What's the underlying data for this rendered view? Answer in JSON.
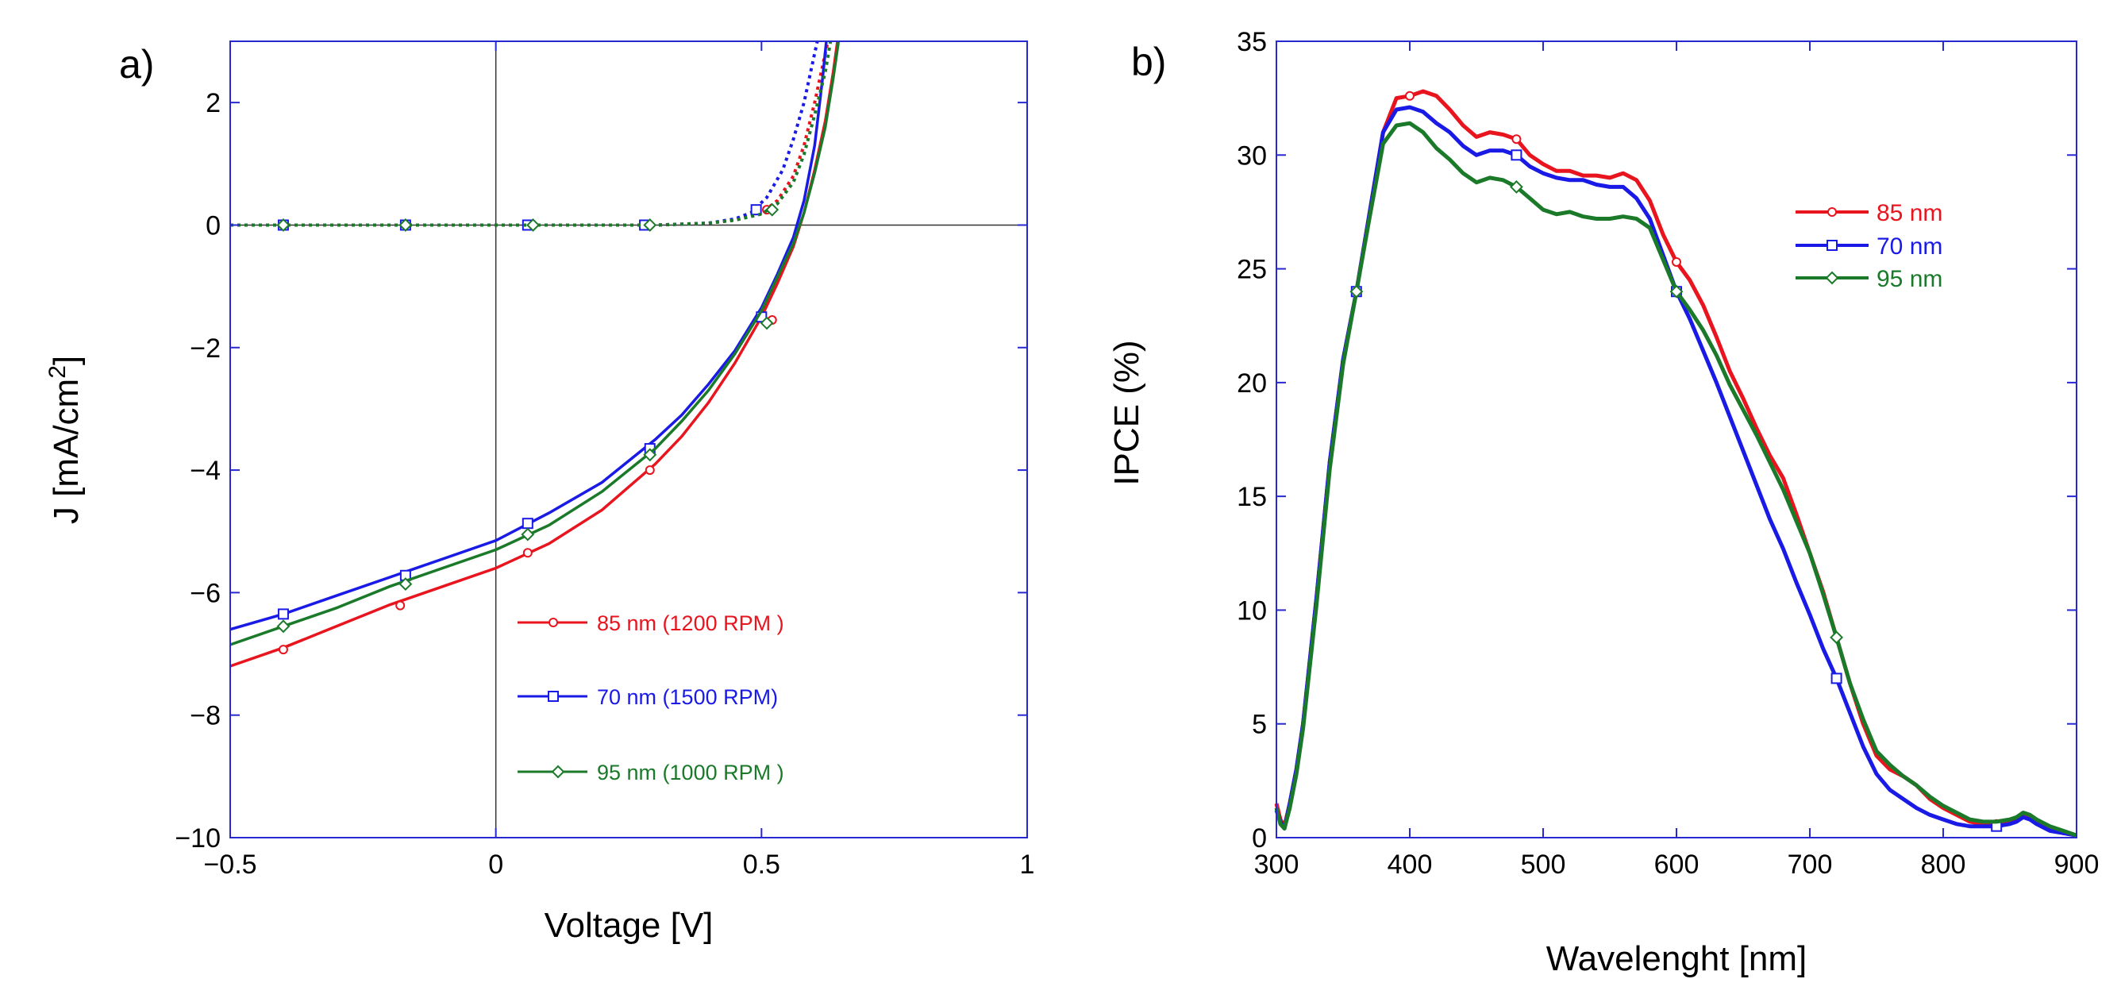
{
  "chart_data": [
    {
      "type": "line",
      "panel_label": "a)",
      "title": "",
      "xlabel": "Voltage [V]",
      "ylabel": "J [mA/cm2]",
      "ylabel_parts": {
        "base": "J [mA/cm",
        "sup": "2",
        "end": "]"
      },
      "xlim": [
        -0.5,
        1.0
      ],
      "ylim": [
        -10,
        3
      ],
      "xticks": [
        -0.5,
        0,
        0.5,
        1
      ],
      "xtick_labels": [
        "−0.5",
        "0",
        "0.5",
        "1"
      ],
      "yticks": [
        2,
        0,
        -2,
        -4,
        -6,
        -8,
        -10
      ],
      "ytick_labels": [
        "2",
        "0",
        "−2",
        "−4",
        "−6",
        "−8",
        "−10"
      ],
      "grid": false,
      "legend_position": "bottom-right",
      "series": [
        {
          "name": "85 nm (1200 RPM )",
          "color": "#e8141e",
          "marker": "circle",
          "light_x": [
            -0.5,
            -0.4,
            -0.3,
            -0.2,
            -0.1,
            0,
            0.1,
            0.2,
            0.3,
            0.35,
            0.4,
            0.45,
            0.5,
            0.53,
            0.56,
            0.58,
            0.6,
            0.62,
            0.635,
            0.643
          ],
          "light_y": [
            -7.2,
            -6.9,
            -6.55,
            -6.2,
            -5.9,
            -5.6,
            -5.2,
            -4.65,
            -3.9,
            -3.45,
            -2.9,
            -2.25,
            -1.5,
            -0.95,
            -0.35,
            0.2,
            0.9,
            1.7,
            2.5,
            3.0
          ],
          "dark_x": [
            -0.5,
            -0.4,
            -0.3,
            -0.2,
            -0.1,
            0,
            0.1,
            0.2,
            0.3,
            0.4,
            0.45,
            0.5,
            0.53,
            0.56,
            0.58,
            0.6,
            0.615,
            0.625
          ],
          "dark_y": [
            0,
            0,
            0,
            0,
            0,
            0,
            0,
            0,
            0,
            0.03,
            0.08,
            0.2,
            0.4,
            0.8,
            1.3,
            2.0,
            2.6,
            3.0
          ],
          "marker_light_x": [
            -0.4,
            -0.18,
            0.06,
            0.29,
            0.52
          ],
          "marker_light_y": [
            -6.93,
            -6.21,
            -5.35,
            -4.0,
            -1.55
          ],
          "marker_dark_x": [
            -0.4,
            -0.17,
            0.06,
            0.28,
            0.51
          ],
          "marker_dark_y": [
            0,
            0,
            0,
            0,
            0.25
          ]
        },
        {
          "name": "70 nm (1500 RPM)",
          "color": "#1a1ae6",
          "marker": "square",
          "light_x": [
            -0.5,
            -0.4,
            -0.3,
            -0.2,
            -0.1,
            0,
            0.1,
            0.2,
            0.3,
            0.35,
            0.4,
            0.45,
            0.5,
            0.53,
            0.56,
            0.58,
            0.6,
            0.615,
            0.622
          ],
          "light_y": [
            -6.6,
            -6.35,
            -6.05,
            -5.75,
            -5.45,
            -5.15,
            -4.7,
            -4.2,
            -3.5,
            -3.1,
            -2.6,
            -2.05,
            -1.35,
            -0.8,
            -0.2,
            0.4,
            1.3,
            2.4,
            3.0
          ],
          "dark_x": [
            -0.5,
            -0.4,
            -0.3,
            -0.2,
            -0.1,
            0,
            0.1,
            0.2,
            0.3,
            0.4,
            0.45,
            0.48,
            0.51,
            0.54,
            0.56,
            0.58,
            0.595,
            0.605
          ],
          "dark_y": [
            0,
            0,
            0,
            0,
            0,
            0,
            0,
            0,
            0,
            0.03,
            0.1,
            0.2,
            0.45,
            0.9,
            1.4,
            2.0,
            2.6,
            3.0
          ],
          "marker_light_x": [
            -0.4,
            -0.17,
            0.06,
            0.29,
            0.5
          ],
          "marker_light_y": [
            -6.35,
            -5.72,
            -4.87,
            -3.65,
            -1.5
          ],
          "marker_dark_x": [
            -0.4,
            -0.17,
            0.06,
            0.28,
            0.49
          ],
          "marker_dark_y": [
            0,
            0,
            0,
            0,
            0.25
          ]
        },
        {
          "name": "95 nm (1000 RPM )",
          "color": "#1b7a2a",
          "marker": "diamond",
          "light_x": [
            -0.5,
            -0.4,
            -0.3,
            -0.2,
            -0.1,
            0,
            0.1,
            0.2,
            0.3,
            0.35,
            0.4,
            0.45,
            0.5,
            0.53,
            0.56,
            0.58,
            0.6,
            0.62,
            0.635,
            0.645
          ],
          "light_y": [
            -6.85,
            -6.55,
            -6.25,
            -5.9,
            -5.6,
            -5.3,
            -4.9,
            -4.35,
            -3.65,
            -3.2,
            -2.7,
            -2.1,
            -1.4,
            -0.85,
            -0.3,
            0.2,
            0.85,
            1.6,
            2.4,
            3.0
          ],
          "dark_x": [
            -0.5,
            -0.4,
            -0.3,
            -0.2,
            -0.1,
            0,
            0.1,
            0.2,
            0.3,
            0.4,
            0.45,
            0.5,
            0.53,
            0.56,
            0.58,
            0.6,
            0.62,
            0.63
          ],
          "dark_y": [
            0,
            0,
            0,
            0,
            0,
            0,
            0,
            0,
            0,
            0.03,
            0.08,
            0.18,
            0.35,
            0.7,
            1.15,
            1.8,
            2.5,
            3.0
          ],
          "marker_light_x": [
            -0.4,
            -0.17,
            0.06,
            0.29,
            0.51
          ],
          "marker_light_y": [
            -6.55,
            -5.86,
            -5.05,
            -3.75,
            -1.6
          ],
          "marker_dark_x": [
            -0.4,
            -0.17,
            0.07,
            0.29,
            0.52
          ],
          "marker_dark_y": [
            0,
            0,
            0,
            0,
            0.25
          ]
        }
      ]
    },
    {
      "type": "line",
      "panel_label": "b)",
      "title": "",
      "xlabel": "Wavelenght  [nm]",
      "ylabel": "IPCE (%)",
      "xlim": [
        300,
        900
      ],
      "ylim": [
        0,
        35
      ],
      "xticks": [
        300,
        400,
        500,
        600,
        700,
        800,
        900
      ],
      "xtick_labels": [
        "300",
        "400",
        "500",
        "600",
        "700",
        "800",
        "900"
      ],
      "yticks": [
        0,
        5,
        10,
        15,
        20,
        25,
        30,
        35
      ],
      "ytick_labels": [
        "0",
        "5",
        "10",
        "15",
        "20",
        "25",
        "30",
        "35"
      ],
      "grid": false,
      "legend_position": "top-right",
      "series": [
        {
          "name": "85 nm",
          "color": "#e8141e",
          "marker": "circle",
          "x": [
            300,
            303,
            306,
            310,
            315,
            320,
            330,
            340,
            350,
            360,
            370,
            380,
            390,
            400,
            410,
            420,
            430,
            440,
            450,
            460,
            470,
            480,
            490,
            500,
            510,
            520,
            530,
            540,
            550,
            560,
            570,
            580,
            590,
            600,
            610,
            620,
            630,
            640,
            650,
            660,
            670,
            680,
            690,
            700,
            710,
            720,
            730,
            740,
            750,
            760,
            770,
            780,
            790,
            800,
            810,
            820,
            830,
            840,
            850,
            855,
            860,
            865,
            870,
            880,
            890,
            900
          ],
          "y": [
            1.5,
            0.8,
            0.5,
            1.5,
            3.0,
            5.0,
            10.5,
            16.5,
            21.0,
            24.0,
            27.5,
            31.0,
            32.5,
            32.6,
            32.8,
            32.6,
            32.0,
            31.3,
            30.8,
            31.0,
            30.9,
            30.7,
            30.0,
            29.6,
            29.3,
            29.3,
            29.1,
            29.1,
            29.0,
            29.2,
            28.9,
            28.0,
            26.5,
            25.3,
            24.5,
            23.4,
            22.0,
            20.5,
            19.3,
            18.0,
            16.8,
            15.8,
            14.2,
            12.5,
            10.8,
            8.8,
            6.8,
            5.0,
            3.6,
            3.0,
            2.7,
            2.3,
            1.7,
            1.3,
            1.0,
            0.7,
            0.6,
            0.6,
            0.7,
            0.8,
            1.0,
            0.9,
            0.7,
            0.4,
            0.2,
            0.1
          ],
          "marker_x": [
            360,
            400,
            480,
            600,
            720,
            840
          ],
          "marker_y": [
            24.0,
            32.6,
            30.7,
            25.3,
            8.8,
            0.6
          ]
        },
        {
          "name": "70 nm",
          "color": "#1a1ae6",
          "marker": "square",
          "x": [
            300,
            303,
            306,
            310,
            315,
            320,
            330,
            340,
            350,
            360,
            370,
            380,
            390,
            400,
            410,
            420,
            430,
            440,
            450,
            460,
            470,
            480,
            490,
            500,
            510,
            520,
            530,
            540,
            550,
            560,
            570,
            580,
            590,
            600,
            610,
            620,
            630,
            640,
            650,
            660,
            670,
            680,
            690,
            700,
            710,
            720,
            730,
            740,
            750,
            760,
            770,
            780,
            790,
            800,
            810,
            820,
            830,
            840,
            850,
            855,
            860,
            865,
            870,
            880,
            890,
            900
          ],
          "y": [
            1.2,
            0.7,
            0.4,
            1.5,
            3.0,
            5.0,
            10.5,
            16.5,
            21.0,
            24.0,
            27.5,
            31.0,
            32.0,
            32.1,
            31.9,
            31.4,
            31.0,
            30.4,
            30.0,
            30.2,
            30.2,
            30.0,
            29.5,
            29.2,
            29.0,
            28.9,
            28.9,
            28.7,
            28.6,
            28.6,
            28.1,
            27.2,
            25.6,
            24.0,
            22.8,
            21.4,
            20.0,
            18.5,
            17.0,
            15.5,
            14.0,
            12.7,
            11.2,
            9.8,
            8.3,
            7.0,
            5.5,
            4.0,
            2.8,
            2.1,
            1.7,
            1.3,
            1.0,
            0.8,
            0.6,
            0.5,
            0.5,
            0.5,
            0.6,
            0.7,
            0.9,
            0.8,
            0.6,
            0.3,
            0.2,
            0.1
          ],
          "marker_x": [
            360,
            480,
            600,
            720,
            840
          ],
          "marker_y": [
            24.0,
            30.0,
            24.0,
            7.0,
            0.5
          ]
        },
        {
          "name": "95 nm",
          "color": "#1b7a2a",
          "marker": "diamond",
          "x": [
            300,
            303,
            306,
            310,
            315,
            320,
            330,
            340,
            350,
            360,
            370,
            380,
            390,
            400,
            410,
            420,
            430,
            440,
            450,
            460,
            470,
            480,
            490,
            500,
            510,
            520,
            530,
            540,
            550,
            560,
            570,
            580,
            590,
            600,
            610,
            620,
            630,
            640,
            650,
            660,
            670,
            680,
            690,
            700,
            710,
            720,
            730,
            740,
            750,
            760,
            770,
            780,
            790,
            800,
            810,
            820,
            830,
            840,
            850,
            855,
            860,
            865,
            870,
            880,
            890,
            900
          ],
          "y": [
            1.3,
            0.6,
            0.4,
            1.3,
            2.8,
            4.8,
            10.2,
            16.2,
            20.8,
            24.0,
            27.3,
            30.5,
            31.3,
            31.4,
            31.0,
            30.3,
            29.8,
            29.2,
            28.8,
            29.0,
            28.9,
            28.6,
            28.1,
            27.6,
            27.4,
            27.5,
            27.3,
            27.2,
            27.2,
            27.3,
            27.2,
            26.8,
            25.4,
            24.0,
            23.2,
            22.3,
            21.2,
            19.9,
            18.8,
            17.7,
            16.5,
            15.3,
            13.9,
            12.5,
            10.7,
            8.8,
            6.8,
            5.2,
            3.8,
            3.2,
            2.7,
            2.3,
            1.8,
            1.4,
            1.1,
            0.8,
            0.7,
            0.7,
            0.8,
            0.9,
            1.1,
            1.0,
            0.8,
            0.5,
            0.3,
            0.1
          ],
          "marker_x": [
            360,
            480,
            600,
            720
          ],
          "marker_y": [
            24.0,
            28.6,
            24.0,
            8.8
          ]
        }
      ]
    }
  ]
}
